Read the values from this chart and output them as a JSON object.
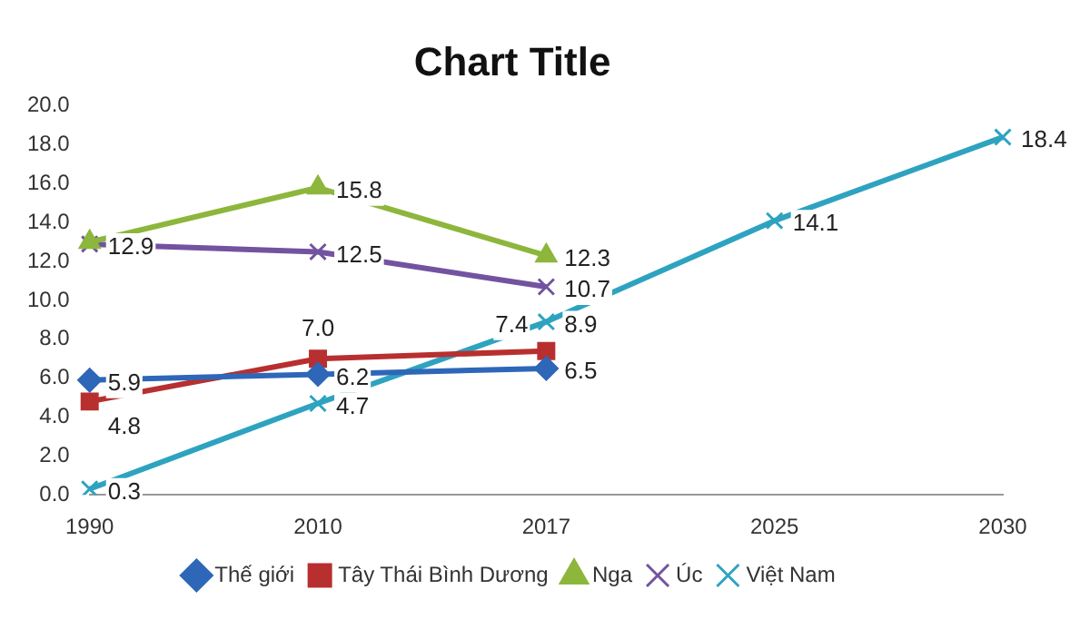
{
  "chart_data": {
    "type": "line",
    "title": "Chart Title",
    "categories": [
      "1990",
      "2010",
      "2017",
      "2025",
      "2030"
    ],
    "ylim": [
      0,
      20
    ],
    "yticks": [
      {
        "value": 0,
        "label": "0.0"
      },
      {
        "value": 2,
        "label": "2.0"
      },
      {
        "value": 4,
        "label": "4.0"
      },
      {
        "value": 6,
        "label": "6.0"
      },
      {
        "value": 8,
        "label": "8.0"
      },
      {
        "value": 10,
        "label": "10.0"
      },
      {
        "value": 12,
        "label": "12.0"
      },
      {
        "value": 14,
        "label": "14.0"
      },
      {
        "value": 16,
        "label": "16.0"
      },
      {
        "value": 18,
        "label": "18.0"
      },
      {
        "value": 20,
        "label": "20.0"
      }
    ],
    "legend": "bottom",
    "series": [
      {
        "name": "Thế giới",
        "color": "#2e67b8",
        "marker": "diamond",
        "values": [
          5.9,
          6.2,
          6.5,
          null,
          null
        ],
        "value_labels": [
          "5.9",
          "6.2",
          "6.5",
          null,
          null
        ]
      },
      {
        "name": "Tây Thái Bình Dương",
        "color": "#b82f2f",
        "marker": "square",
        "values": [
          4.8,
          7.0,
          7.4,
          null,
          null
        ],
        "value_labels": [
          "4.8",
          "7.0",
          "7.4",
          null,
          null
        ]
      },
      {
        "name": "Nga",
        "color": "#8db63c",
        "marker": "triangle",
        "values": [
          13.0,
          15.8,
          12.3,
          null,
          null
        ],
        "value_labels": [
          null,
          "15.8",
          "12.3",
          null,
          null
        ]
      },
      {
        "name": "Úc",
        "color": "#7253a0",
        "marker": "cross",
        "values": [
          12.9,
          12.5,
          10.7,
          null,
          null
        ],
        "value_labels": [
          "12.9",
          "12.5",
          "10.7",
          null,
          null
        ]
      },
      {
        "name": "Việt Nam",
        "color": "#2ea3c0",
        "marker": "cross",
        "values": [
          0.3,
          4.7,
          8.9,
          14.1,
          18.4
        ],
        "value_labels": [
          "0.3",
          "4.7",
          "8.9",
          "14.1",
          "18.4"
        ]
      }
    ]
  }
}
